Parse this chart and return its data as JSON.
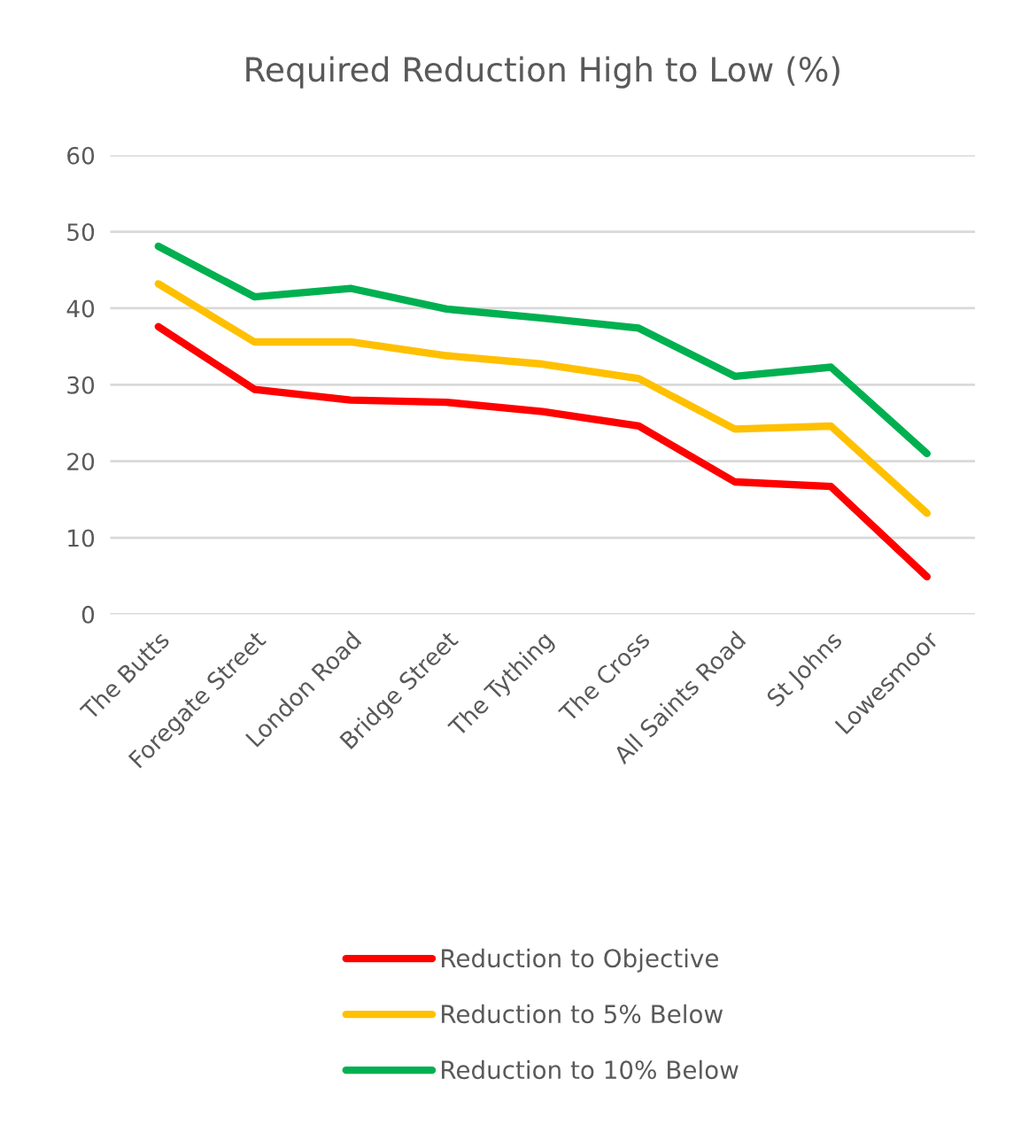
{
  "chart_data": {
    "type": "line",
    "title": "Required Reduction High to Low (%)",
    "categories": [
      "The Butts",
      "Foregate Street",
      "London Road",
      "Bridge Street",
      "The Tything",
      "The Cross",
      "All Saints Road",
      "St Johns",
      "Lowesmoor"
    ],
    "series": [
      {
        "name": "Reduction to Objective",
        "color": "#ff0000",
        "values": [
          37.6,
          29.4,
          28.0,
          27.7,
          26.5,
          24.6,
          17.3,
          16.7,
          4.9
        ]
      },
      {
        "name": "Reduction to 5% Below",
        "color": "#ffc000",
        "values": [
          43.2,
          35.6,
          35.6,
          33.8,
          32.7,
          30.8,
          24.2,
          24.6,
          13.2
        ]
      },
      {
        "name": "Reduction to 10% Below",
        "color": "#00b050",
        "values": [
          48.1,
          41.5,
          42.6,
          39.9,
          38.7,
          37.4,
          31.1,
          32.3,
          21.0
        ]
      }
    ],
    "ylim": [
      0,
      60
    ],
    "yticks": [
      0,
      10,
      20,
      30,
      40,
      50,
      60
    ],
    "grid": "y",
    "legend": "bottom",
    "marker": "none",
    "line_style": "solid"
  }
}
